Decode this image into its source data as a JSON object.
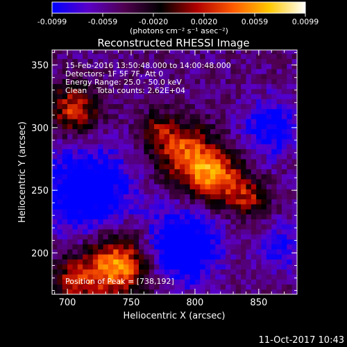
{
  "chart_data": {
    "type": "heatmap",
    "title": "Reconstructed RHESSI Image",
    "xlabel": "Heliocentric X (arcsec)",
    "ylabel": "Heliocentric Y (arcsec)",
    "xlim": [
      688,
      880
    ],
    "ylim": [
      167,
      362
    ],
    "x_ticks": [
      700,
      750,
      800,
      850
    ],
    "y_ticks": [
      200,
      250,
      300,
      350
    ],
    "colorbar": {
      "ticks": [
        "-0.0099",
        "-0.0059",
        "-0.0020",
        "0.0020",
        "0.0059",
        "0.0099"
      ],
      "units": "(photons cm⁻² s⁻¹ asec⁻²)",
      "range": [
        -0.0099,
        0.0099
      ],
      "colormap": [
        "#0000ff",
        "#5a00c8",
        "#500050",
        "#000000",
        "#b00000",
        "#ff5a00",
        "#ffc800",
        "#ffffff"
      ]
    },
    "annotations": [
      "15-Feb-2016 13:50:48.000 to 14:00:48.000",
      "Detectors: 1F 5F 7F, Att 0",
      "Energy Range: 25.0 - 50.0 keV",
      "Clean    Total counts: 2.62E+04"
    ],
    "peak_label": "Position of Peak = [738,192]",
    "peak": [
      738,
      192
    ],
    "sources": [
      {
        "x": 815,
        "y": 262,
        "sigma": 15,
        "amp": 0.0105
      },
      {
        "x": 790,
        "y": 282,
        "sigma": 16,
        "amp": 0.0085
      },
      {
        "x": 842,
        "y": 244,
        "sigma": 11,
        "amp": 0.006
      },
      {
        "x": 705,
        "y": 315,
        "sigma": 14,
        "amp": 0.008
      },
      {
        "x": 740,
        "y": 190,
        "sigma": 18,
        "amp": 0.011
      },
      {
        "x": 705,
        "y": 178,
        "sigma": 14,
        "amp": 0.006
      },
      {
        "x": 770,
        "y": 300,
        "sigma": 9,
        "amp": 0.0045
      },
      {
        "x": 715,
        "y": 250,
        "sigma": 25,
        "amp": -0.0075
      },
      {
        "x": 790,
        "y": 205,
        "sigma": 20,
        "amp": -0.0085
      },
      {
        "x": 860,
        "y": 300,
        "sigma": 16,
        "amp": -0.0055
      },
      {
        "x": 868,
        "y": 205,
        "sigma": 13,
        "amp": -0.004
      }
    ],
    "background": -0.0052,
    "timestamp": "11-Oct-2017 10:43"
  }
}
